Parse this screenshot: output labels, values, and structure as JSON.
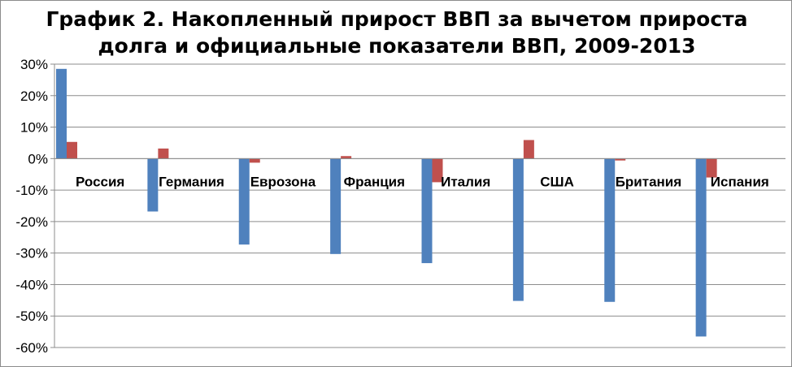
{
  "chart_data": {
    "type": "bar",
    "title": "График 2. Накопленный прирост ВВП за вычетом прироста\nдолга и официальные показатели ВВП, 2009-2013",
    "xlabel": "",
    "ylabel": "",
    "ylim": [
      -60,
      30
    ],
    "yticks": [
      "30%",
      "20%",
      "10%",
      "0%",
      "-10%",
      "-20%",
      "-30%",
      "-40%",
      "-50%",
      "-60%"
    ],
    "ytick_values": [
      30,
      20,
      10,
      0,
      -10,
      -20,
      -30,
      -40,
      -50,
      -60
    ],
    "grid": "horizontal",
    "legend": "none",
    "categories": [
      "Россия",
      "Германия",
      "Еврозона",
      "Франция",
      "Италия",
      "США",
      "Британия",
      "Испания"
    ],
    "series": [
      {
        "color": "#4f81bd",
        "values": [
          28.5,
          -16.8,
          -27.3,
          -30.3,
          -33.2,
          -45.2,
          -45.5,
          -56.5
        ]
      },
      {
        "color": "#c0504d",
        "values": [
          5.3,
          3.2,
          -1.3,
          0.8,
          -7.5,
          5.9,
          -0.6,
          -6.0
        ]
      }
    ]
  }
}
